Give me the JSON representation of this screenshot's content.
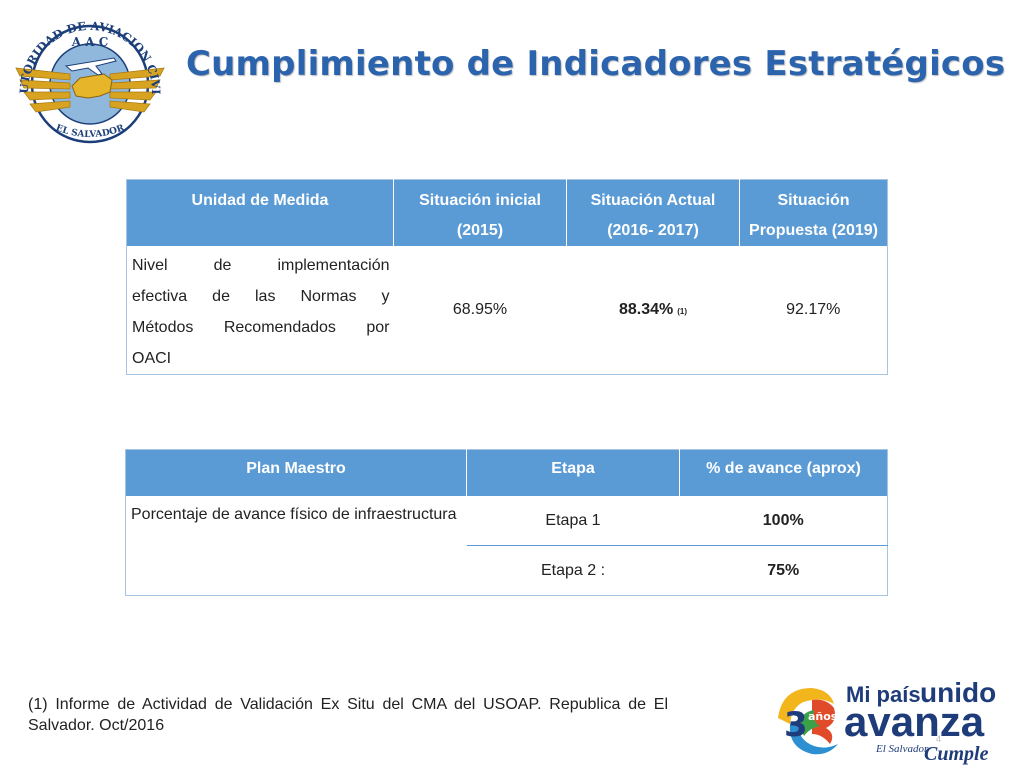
{
  "header": {
    "title": "Cumplimiento de Indicadores Estratégicos",
    "logo": {
      "top_text": "AUTORIDAD DE AVIACION CIVIL",
      "initials": "A A C",
      "bottom_text": "EL SALVADOR",
      "icon": "aac-seal-icon"
    }
  },
  "table_indicators": {
    "headers": {
      "col1": "Unidad de Medida",
      "col2_l1": "Situación inicial",
      "col2_l2": "(2015)",
      "col3_l1": "Situación Actual",
      "col3_l2": "(2016- 2017)",
      "col4_l1": "Situación",
      "col4_l2": "Propuesta (2019)"
    },
    "row": {
      "description_lines": [
        "Nivel de implementación",
        "efectiva de las Normas y",
        "Métodos Recomendados por",
        "OACI"
      ],
      "initial": "68.95%",
      "current": "88.34%",
      "current_note": "(1)",
      "proposed": "92.17%"
    }
  },
  "table_plan": {
    "headers": {
      "col1": "Plan Maestro",
      "col2": "Etapa",
      "col3": "% de avance (aprox)"
    },
    "description": "Porcentaje de avance físico de infraestructura",
    "rows": [
      {
        "stage": "Etapa 1",
        "progress": "100%"
      },
      {
        "stage": "Etapa 2 :",
        "progress": "75%"
      }
    ]
  },
  "footnote": "(1) Informe de Actividad de Validación Ex Situ del CMA del USOAP. Republica de El Salvador. Oct/2016",
  "brand": {
    "line1_a": "Mi país",
    "line1_b": "unido",
    "line2": "avanza",
    "years_number": "3",
    "years_word": "años",
    "subtitle": "El Salvador",
    "slogan": "Cumple",
    "page_mark": "4"
  },
  "colors": {
    "title": "#2b63ad",
    "header_fill": "#5b9bd5",
    "brand_navy": "#1f3c7a"
  }
}
